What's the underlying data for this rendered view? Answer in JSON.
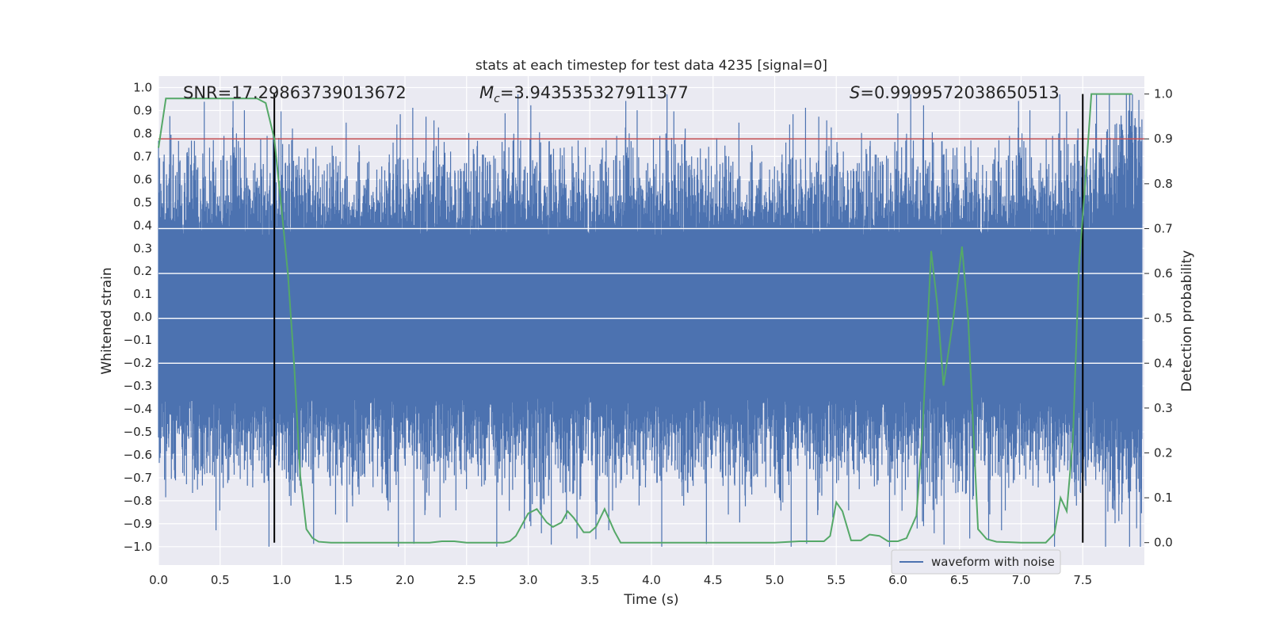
{
  "chart_data": {
    "type": "line",
    "title": "stats at each timestep for test data 4235 [signal=0]",
    "xlabel": "Time (s)",
    "ylabel_left": "Whitened strain",
    "ylabel_right": "Detection probability",
    "xlim": [
      0.0,
      8.0
    ],
    "ylim_left": [
      -1.08,
      1.05
    ],
    "ylim_right": [
      -0.05,
      1.04
    ],
    "xticks": [
      "0.0",
      "0.5",
      "1.0",
      "1.5",
      "2.0",
      "2.5",
      "3.0",
      "3.5",
      "4.0",
      "4.5",
      "5.0",
      "5.5",
      "6.0",
      "6.5",
      "7.0",
      "7.5"
    ],
    "yticks_left": [
      "1.0",
      "0.9",
      "0.8",
      "0.7",
      "0.6",
      "0.5",
      "0.4",
      "0.3",
      "0.2",
      "0.1",
      "0.0",
      "-0.1",
      "-0.2",
      "-0.3",
      "-0.4",
      "-0.5",
      "-0.6",
      "-0.7",
      "-0.8",
      "-0.9",
      "-1.0"
    ],
    "yticks_right": [
      "1.0",
      "0.9",
      "0.8",
      "0.7",
      "0.6",
      "0.5",
      "0.4",
      "0.3",
      "0.2",
      "0.1",
      "0.0"
    ],
    "grid": true,
    "legend_position": "bottom-right",
    "annotations": {
      "snr": "SNR=17.29863739013672",
      "mc_symbol": "M",
      "mc_sub": "c",
      "mc_value": "=3.943535327911377",
      "s_symbol": "S",
      "s_value": "=0.9999572038650513"
    },
    "threshold_probability": 0.9,
    "vertical_markers_x": [
      0.94,
      7.5
    ],
    "series": [
      {
        "name": "waveform with noise",
        "axis": "left",
        "color": "#4c72b0",
        "description_envelope": {
          "core_amplitude": 0.35,
          "typical_peak": 0.55,
          "max_peak": 0.97,
          "min_trough": -1.0
        }
      },
      {
        "axis": "right",
        "color": "#55a868",
        "x": [
          0.0,
          0.06,
          0.2,
          0.4,
          0.6,
          0.8,
          0.87,
          0.94,
          1.0,
          1.05,
          1.1,
          1.15,
          1.2,
          1.25,
          1.3,
          1.4,
          1.5,
          1.7,
          2.0,
          2.2,
          2.3,
          2.4,
          2.5,
          2.7,
          2.8,
          2.85,
          2.9,
          3.0,
          3.07,
          3.15,
          3.2,
          3.27,
          3.32,
          3.37,
          3.45,
          3.5,
          3.55,
          3.62,
          3.7,
          3.75,
          3.9,
          4.0,
          4.2,
          4.5,
          5.0,
          5.2,
          5.4,
          5.45,
          5.5,
          5.55,
          5.62,
          5.7,
          5.77,
          5.85,
          5.92,
          6.0,
          6.07,
          6.15,
          6.2,
          6.27,
          6.32,
          6.37,
          6.45,
          6.52,
          6.57,
          6.65,
          6.72,
          6.8,
          7.0,
          7.2,
          7.27,
          7.32,
          7.37,
          7.42,
          7.47,
          7.52,
          7.57,
          7.65,
          7.9
        ],
        "y": [
          0.88,
          0.99,
          0.99,
          0.99,
          0.99,
          0.99,
          0.98,
          0.9,
          0.74,
          0.6,
          0.4,
          0.15,
          0.03,
          0.01,
          0.002,
          0.0,
          0.0,
          0.0,
          0.0,
          0.0,
          0.003,
          0.003,
          0.0,
          0.0,
          0.0,
          0.003,
          0.015,
          0.065,
          0.075,
          0.045,
          0.035,
          0.045,
          0.07,
          0.055,
          0.023,
          0.023,
          0.035,
          0.075,
          0.025,
          0.0,
          0.0,
          0.0,
          0.0,
          0.0,
          0.0,
          0.003,
          0.003,
          0.015,
          0.09,
          0.07,
          0.005,
          0.005,
          0.018,
          0.015,
          0.003,
          0.003,
          0.01,
          0.06,
          0.25,
          0.65,
          0.53,
          0.35,
          0.5,
          0.66,
          0.5,
          0.03,
          0.008,
          0.002,
          0.0,
          0.0,
          0.02,
          0.1,
          0.07,
          0.23,
          0.62,
          0.8,
          1.0,
          1.0,
          1.0
        ]
      }
    ]
  }
}
